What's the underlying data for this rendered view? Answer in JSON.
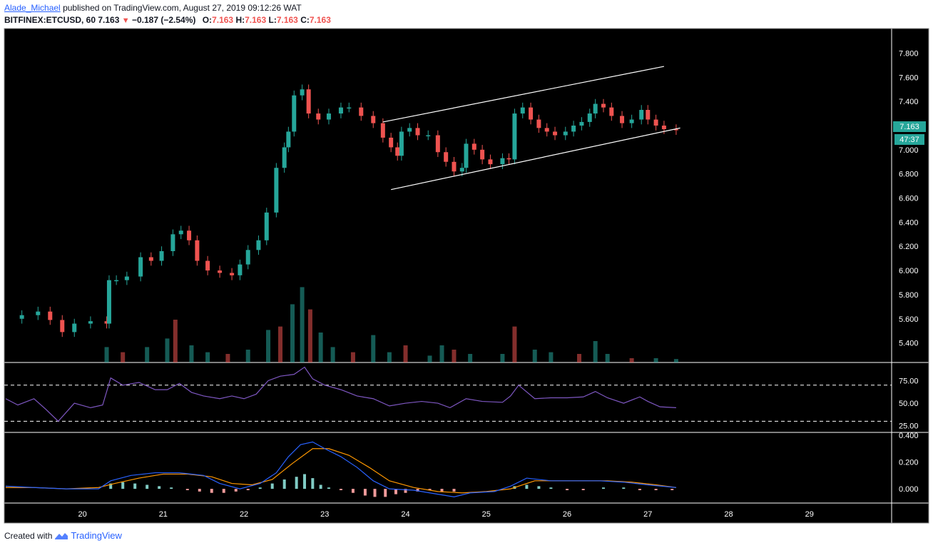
{
  "header": {
    "author": "Alade_Michael",
    "published_text": "published on TradingView.com, August 27, 2019 09:12:26 WAT",
    "symbol": "BITFINEX:ETCUSD, 60",
    "last": "7.163",
    "change": "−0.187 (−2.54%)",
    "o_label": "O:",
    "o_val": "7.163",
    "h_label": "H:",
    "h_val": "7.163",
    "l_label": "L:",
    "l_val": "7.163",
    "c_label": "C:",
    "c_val": "7.163"
  },
  "footer": {
    "created_with": "Created with",
    "brand": "TradingView"
  },
  "colors": {
    "background": "#000000",
    "up": "#26a69a",
    "down": "#ef5350",
    "rsi_line": "#7e57c2",
    "macd_line": "#2962ff",
    "signal_line": "#ff9800",
    "channel": "#ffffff"
  },
  "price_label": "7.163",
  "countdown_label": "47:37",
  "chart_data": {
    "type": "candlestick",
    "symbol": "BITFINEX:ETCUSD",
    "interval": "60",
    "price_axis": {
      "ticks": [
        "7.800",
        "7.600",
        "7.400",
        "7.200",
        "7.000",
        "6.800",
        "6.600",
        "6.400",
        "6.200",
        "6.000",
        "5.800",
        "5.600",
        "5.400"
      ],
      "ylim": [
        5.25,
        7.98
      ]
    },
    "x_axis": {
      "ticks": [
        "20",
        "21",
        "22",
        "23",
        "24",
        "25",
        "26",
        "27",
        "28",
        "29"
      ],
      "xlim": [
        19.05,
        30.0
      ]
    },
    "price_series": [
      [
        19.05,
        5.6
      ],
      [
        19.25,
        5.63
      ],
      [
        19.45,
        5.66
      ],
      [
        19.6,
        5.59
      ],
      [
        19.75,
        5.49
      ],
      [
        19.9,
        5.56
      ],
      [
        20.1,
        5.58
      ],
      [
        20.3,
        5.56
      ],
      [
        20.33,
        5.92
      ],
      [
        20.42,
        5.92
      ],
      [
        20.55,
        5.95
      ],
      [
        20.72,
        6.11
      ],
      [
        20.85,
        6.08
      ],
      [
        20.98,
        6.16
      ],
      [
        21.12,
        6.3
      ],
      [
        21.22,
        6.33
      ],
      [
        21.32,
        6.25
      ],
      [
        21.42,
        6.08
      ],
      [
        21.55,
        6.0
      ],
      [
        21.7,
        5.98
      ],
      [
        21.85,
        5.96
      ],
      [
        21.95,
        6.05
      ],
      [
        22.05,
        6.17
      ],
      [
        22.18,
        6.25
      ],
      [
        22.28,
        6.48
      ],
      [
        22.4,
        6.85
      ],
      [
        22.5,
        7.02
      ],
      [
        22.55,
        7.15
      ],
      [
        22.62,
        7.45
      ],
      [
        22.72,
        7.5
      ],
      [
        22.8,
        7.3
      ],
      [
        22.92,
        7.25
      ],
      [
        23.05,
        7.3
      ],
      [
        23.2,
        7.35
      ],
      [
        23.3,
        7.35
      ],
      [
        23.45,
        7.28
      ],
      [
        23.6,
        7.22
      ],
      [
        23.72,
        7.1
      ],
      [
        23.82,
        7.02
      ],
      [
        23.9,
        6.95
      ],
      [
        23.95,
        7.15
      ],
      [
        24.05,
        7.18
      ],
      [
        24.15,
        7.12
      ],
      [
        24.28,
        7.12
      ],
      [
        24.4,
        6.98
      ],
      [
        24.5,
        6.9
      ],
      [
        24.6,
        6.82
      ],
      [
        24.7,
        6.85
      ],
      [
        24.75,
        7.05
      ],
      [
        24.85,
        7.0
      ],
      [
        24.95,
        6.92
      ],
      [
        25.05,
        6.88
      ],
      [
        25.2,
        6.93
      ],
      [
        25.28,
        6.92
      ],
      [
        25.35,
        7.3
      ],
      [
        25.45,
        7.35
      ],
      [
        25.55,
        7.25
      ],
      [
        25.65,
        7.18
      ],
      [
        25.75,
        7.15
      ],
      [
        25.85,
        7.12
      ],
      [
        25.98,
        7.15
      ],
      [
        26.08,
        7.2
      ],
      [
        26.18,
        7.23
      ],
      [
        26.28,
        7.3
      ],
      [
        26.35,
        7.38
      ],
      [
        26.45,
        7.35
      ],
      [
        26.55,
        7.28
      ],
      [
        26.68,
        7.22
      ],
      [
        26.8,
        7.25
      ],
      [
        26.92,
        7.33
      ],
      [
        27.0,
        7.25
      ],
      [
        27.1,
        7.2
      ],
      [
        27.2,
        7.17
      ],
      [
        27.35,
        7.163
      ]
    ],
    "volume": [
      [
        20.3,
        0.18
      ],
      [
        20.5,
        0.12
      ],
      [
        20.8,
        0.18
      ],
      [
        21.05,
        0.28
      ],
      [
        21.15,
        0.5
      ],
      [
        21.35,
        0.2
      ],
      [
        21.55,
        0.12
      ],
      [
        21.8,
        0.1
      ],
      [
        22.05,
        0.15
      ],
      [
        22.3,
        0.38
      ],
      [
        22.45,
        0.42
      ],
      [
        22.6,
        0.68
      ],
      [
        22.72,
        0.88
      ],
      [
        22.82,
        0.62
      ],
      [
        22.95,
        0.35
      ],
      [
        23.1,
        0.18
      ],
      [
        23.35,
        0.12
      ],
      [
        23.6,
        0.32
      ],
      [
        23.8,
        0.12
      ],
      [
        24.0,
        0.2
      ],
      [
        24.3,
        0.08
      ],
      [
        24.45,
        0.2
      ],
      [
        24.6,
        0.15
      ],
      [
        24.8,
        0.1
      ],
      [
        25.2,
        0.1
      ],
      [
        25.35,
        0.42
      ],
      [
        25.6,
        0.15
      ],
      [
        25.8,
        0.12
      ],
      [
        26.15,
        0.1
      ],
      [
        26.35,
        0.25
      ],
      [
        26.5,
        0.1
      ],
      [
        26.8,
        0.05
      ],
      [
        27.1,
        0.05
      ],
      [
        27.35,
        0.04
      ]
    ],
    "channel": {
      "upper": [
        [
          23.72,
          7.23
        ],
        [
          27.2,
          7.69
        ]
      ],
      "lower": [
        [
          23.82,
          6.67
        ],
        [
          27.4,
          7.18
        ]
      ]
    },
    "rsi": {
      "ticks": [
        "75.00",
        "50.00",
        "25.00"
      ],
      "levels": [
        70,
        30
      ],
      "ylim": [
        20,
        92
      ],
      "series": [
        [
          19.05,
          55
        ],
        [
          19.2,
          48
        ],
        [
          19.4,
          55
        ],
        [
          19.55,
          43
        ],
        [
          19.7,
          30
        ],
        [
          19.9,
          50
        ],
        [
          20.1,
          45
        ],
        [
          20.25,
          48
        ],
        [
          20.35,
          78
        ],
        [
          20.5,
          70
        ],
        [
          20.7,
          73
        ],
        [
          20.9,
          65
        ],
        [
          21.05,
          65
        ],
        [
          21.2,
          72
        ],
        [
          21.35,
          62
        ],
        [
          21.5,
          58
        ],
        [
          21.7,
          55
        ],
        [
          21.85,
          58
        ],
        [
          22.0,
          55
        ],
        [
          22.15,
          60
        ],
        [
          22.3,
          75
        ],
        [
          22.45,
          80
        ],
        [
          22.62,
          82
        ],
        [
          22.75,
          90
        ],
        [
          22.85,
          77
        ],
        [
          23.0,
          70
        ],
        [
          23.2,
          65
        ],
        [
          23.4,
          58
        ],
        [
          23.6,
          55
        ],
        [
          23.8,
          47
        ],
        [
          24.0,
          50
        ],
        [
          24.2,
          52
        ],
        [
          24.4,
          50
        ],
        [
          24.55,
          45
        ],
        [
          24.75,
          55
        ],
        [
          24.95,
          52
        ],
        [
          25.2,
          51
        ],
        [
          25.3,
          58
        ],
        [
          25.4,
          70
        ],
        [
          25.6,
          55
        ],
        [
          25.8,
          56
        ],
        [
          26.0,
          56
        ],
        [
          26.2,
          57
        ],
        [
          26.35,
          63
        ],
        [
          26.5,
          56
        ],
        [
          26.7,
          50
        ],
        [
          26.9,
          57
        ],
        [
          27.0,
          52
        ],
        [
          27.15,
          46
        ],
        [
          27.35,
          45
        ]
      ]
    },
    "macd": {
      "ticks": [
        "0.400",
        "0.200",
        "0.000"
      ],
      "ylim": [
        -0.09,
        0.4
      ],
      "macd_line": [
        [
          19.05,
          0.02
        ],
        [
          19.4,
          0.01
        ],
        [
          19.8,
          0.0
        ],
        [
          20.2,
          0.0
        ],
        [
          20.35,
          0.06
        ],
        [
          20.6,
          0.1
        ],
        [
          20.9,
          0.12
        ],
        [
          21.2,
          0.12
        ],
        [
          21.5,
          0.1
        ],
        [
          21.7,
          0.04
        ],
        [
          21.95,
          0.0
        ],
        [
          22.2,
          0.04
        ],
        [
          22.4,
          0.12
        ],
        [
          22.55,
          0.24
        ],
        [
          22.7,
          0.33
        ],
        [
          22.85,
          0.35
        ],
        [
          23.0,
          0.3
        ],
        [
          23.2,
          0.24
        ],
        [
          23.4,
          0.16
        ],
        [
          23.6,
          0.06
        ],
        [
          23.8,
          0.0
        ],
        [
          24.1,
          -0.01
        ],
        [
          24.4,
          -0.04
        ],
        [
          24.6,
          -0.06
        ],
        [
          24.8,
          -0.03
        ],
        [
          25.1,
          -0.02
        ],
        [
          25.3,
          0.02
        ],
        [
          25.5,
          0.08
        ],
        [
          25.8,
          0.06
        ],
        [
          26.1,
          0.06
        ],
        [
          26.4,
          0.06
        ],
        [
          26.7,
          0.05
        ],
        [
          27.0,
          0.03
        ],
        [
          27.35,
          0.01
        ]
      ],
      "signal_line": [
        [
          19.05,
          0.01
        ],
        [
          19.4,
          0.01
        ],
        [
          19.8,
          0.0
        ],
        [
          20.2,
          0.01
        ],
        [
          20.4,
          0.04
        ],
        [
          20.7,
          0.08
        ],
        [
          21.0,
          0.11
        ],
        [
          21.3,
          0.11
        ],
        [
          21.6,
          0.09
        ],
        [
          21.85,
          0.04
        ],
        [
          22.1,
          0.03
        ],
        [
          22.35,
          0.07
        ],
        [
          22.6,
          0.19
        ],
        [
          22.85,
          0.3
        ],
        [
          23.05,
          0.3
        ],
        [
          23.3,
          0.25
        ],
        [
          23.55,
          0.16
        ],
        [
          23.8,
          0.06
        ],
        [
          24.1,
          0.01
        ],
        [
          24.4,
          -0.02
        ],
        [
          24.7,
          -0.03
        ],
        [
          25.0,
          -0.02
        ],
        [
          25.3,
          0.0
        ],
        [
          25.6,
          0.06
        ],
        [
          25.9,
          0.06
        ],
        [
          26.2,
          0.06
        ],
        [
          26.5,
          0.06
        ],
        [
          26.8,
          0.05
        ],
        [
          27.1,
          0.03
        ],
        [
          27.35,
          0.01
        ]
      ],
      "histogram": [
        [
          20.35,
          0.04
        ],
        [
          20.5,
          0.05
        ],
        [
          20.65,
          0.04
        ],
        [
          20.8,
          0.03
        ],
        [
          20.95,
          0.02
        ],
        [
          21.1,
          0.01
        ],
        [
          21.3,
          -0.01
        ],
        [
          21.45,
          -0.02
        ],
        [
          21.6,
          -0.03
        ],
        [
          21.75,
          -0.03
        ],
        [
          21.9,
          -0.02
        ],
        [
          22.05,
          -0.01
        ],
        [
          22.2,
          0.01
        ],
        [
          22.35,
          0.04
        ],
        [
          22.5,
          0.07
        ],
        [
          22.65,
          0.09
        ],
        [
          22.75,
          0.11
        ],
        [
          22.85,
          0.08
        ],
        [
          22.95,
          0.03
        ],
        [
          23.05,
          0.01
        ],
        [
          23.2,
          -0.01
        ],
        [
          23.35,
          -0.03
        ],
        [
          23.5,
          -0.05
        ],
        [
          23.62,
          -0.06
        ],
        [
          23.75,
          -0.06
        ],
        [
          23.88,
          -0.04
        ],
        [
          24.0,
          -0.03
        ],
        [
          24.15,
          -0.02
        ],
        [
          24.3,
          -0.01
        ],
        [
          24.45,
          -0.02
        ],
        [
          24.6,
          -0.02
        ],
        [
          25.35,
          0.02
        ],
        [
          25.5,
          0.03
        ],
        [
          25.65,
          0.02
        ],
        [
          25.8,
          0.01
        ],
        [
          26.0,
          -0.01
        ],
        [
          26.2,
          -0.01
        ],
        [
          26.45,
          0.01
        ],
        [
          26.7,
          0.01
        ],
        [
          26.9,
          -0.01
        ],
        [
          27.1,
          -0.01
        ],
        [
          27.3,
          -0.01
        ]
      ]
    }
  }
}
